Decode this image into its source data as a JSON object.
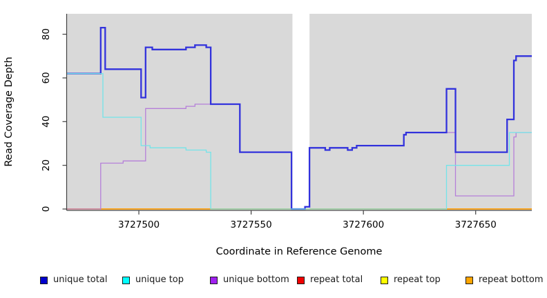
{
  "chart_data": {
    "type": "line",
    "step": true,
    "title": "",
    "xlabel": "Coordinate in Reference Genome",
    "ylabel": "Read Coverage Depth",
    "xlim": [
      3727468,
      3727675
    ],
    "ylim": [
      0,
      89
    ],
    "grid": false,
    "plot_bg_color": "#d9d9d9",
    "axis_color": "#404040",
    "xticks": [
      3727500,
      3727550,
      3727600,
      3727650
    ],
    "xtick_labels": [
      "3727500",
      "3727550",
      "3727600",
      "3727650"
    ],
    "yticks": [
      0,
      20,
      40,
      60,
      80
    ],
    "ytick_labels": [
      "0",
      "20",
      "40",
      "60",
      "80"
    ],
    "gap_region": {
      "from": 3727568.4,
      "to": 3727576,
      "color": "#ffffff"
    },
    "series": [
      {
        "name": "repeat total",
        "id": "repeat-total",
        "color": "#e60000",
        "width": 1.2,
        "points": [
          [
            3727468,
            0
          ]
        ]
      },
      {
        "name": "repeat top",
        "id": "repeat-top",
        "color": "#ffe600",
        "width": 1.2,
        "points": [
          [
            3727468,
            0
          ]
        ]
      },
      {
        "name": "repeat bottom",
        "id": "repeat-bottom",
        "color": "#ff9d00",
        "width": 1.6,
        "points": [
          [
            3727468,
            0
          ]
        ]
      },
      {
        "name": "unique bottom",
        "id": "unique-bottom",
        "color": "#b57fd9",
        "width": 1.3,
        "points": [
          [
            3727468,
            0
          ],
          [
            3727483,
            21
          ],
          [
            3727493,
            22
          ],
          [
            3727503,
            46
          ],
          [
            3727521,
            47
          ],
          [
            3727525,
            48
          ],
          [
            3727545,
            26
          ],
          [
            3727568,
            0
          ],
          [
            3727574,
            1
          ],
          [
            3727576,
            28
          ],
          [
            3727583,
            27
          ],
          [
            3727585,
            28
          ],
          [
            3727593,
            27
          ],
          [
            3727595,
            28
          ],
          [
            3727597,
            29
          ],
          [
            3727618,
            34
          ],
          [
            3727619,
            35
          ],
          [
            3727641,
            6
          ],
          [
            3727667,
            33
          ],
          [
            3727668,
            35
          ]
        ]
      },
      {
        "name": "unique total",
        "id": "unique-total",
        "color": "#3232dc",
        "width": 2.3,
        "points": [
          [
            3727468,
            62
          ],
          [
            3727483,
            83
          ],
          [
            3727485,
            64
          ],
          [
            3727501,
            51
          ],
          [
            3727503,
            74
          ],
          [
            3727506,
            73
          ],
          [
            3727521,
            74
          ],
          [
            3727525,
            75
          ],
          [
            3727530,
            74
          ],
          [
            3727532,
            48
          ],
          [
            3727545,
            26
          ],
          [
            3727568,
            0
          ],
          [
            3727574,
            1
          ],
          [
            3727576,
            28
          ],
          [
            3727583,
            27
          ],
          [
            3727585,
            28
          ],
          [
            3727593,
            27
          ],
          [
            3727595,
            28
          ],
          [
            3727597,
            29
          ],
          [
            3727618,
            34
          ],
          [
            3727619,
            35
          ],
          [
            3727637,
            55
          ],
          [
            3727641,
            26
          ],
          [
            3727664,
            41
          ],
          [
            3727667,
            68
          ],
          [
            3727668,
            70
          ]
        ]
      },
      {
        "name": "unique top",
        "id": "unique-top",
        "color": "#73e4e9",
        "width": 1.3,
        "points": [
          [
            3727468,
            62
          ],
          [
            3727484,
            42
          ],
          [
            3727501,
            29
          ],
          [
            3727505,
            28
          ],
          [
            3727521,
            27
          ],
          [
            3727530,
            26
          ],
          [
            3727532,
            0
          ],
          [
            3727637,
            20
          ],
          [
            3727665,
            35
          ]
        ]
      }
    ],
    "legend": [
      {
        "label": "unique total",
        "color": "#0000cd",
        "id": "unique-total"
      },
      {
        "label": "unique top",
        "color": "#00ffff",
        "id": "unique-top"
      },
      {
        "label": "unique bottom",
        "color": "#a020f0",
        "id": "unique-bottom"
      },
      {
        "label": "repeat total",
        "color": "#f00000",
        "id": "repeat-total"
      },
      {
        "label": "repeat top",
        "color": "#ffff00",
        "id": "repeat-top"
      },
      {
        "label": "repeat bottom",
        "color": "#ffa500",
        "id": "repeat-bottom"
      }
    ]
  }
}
